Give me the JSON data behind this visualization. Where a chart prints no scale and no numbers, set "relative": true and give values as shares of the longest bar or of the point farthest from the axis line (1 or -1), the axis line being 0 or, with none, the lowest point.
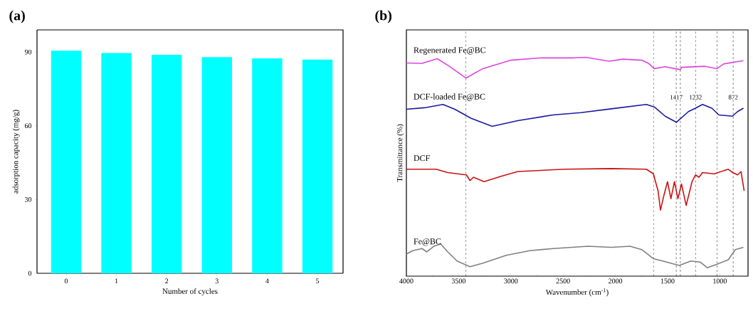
{
  "chart_data": [
    {
      "type": "bar",
      "title": "(a)",
      "xlabel": "Number of cycles",
      "ylabel": "adsorption capacity (mg/g)",
      "categories": [
        "0",
        "1",
        "2",
        "3",
        "4",
        "5"
      ],
      "values": [
        90.5,
        89.6,
        88.9,
        87.9,
        87.4,
        86.9
      ],
      "color": "#00ffff",
      "ylim": [
        0,
        99
      ],
      "yticks": [
        0,
        30,
        60,
        90
      ]
    },
    {
      "type": "line",
      "title": "(b)",
      "xlabel": "Wavenumber (cm$^{-1}$)",
      "ylabel": "Transmittance (%)",
      "relative": true,
      "xlim": [
        4000,
        730
      ],
      "xticks": [
        4000,
        3500,
        3000,
        2500,
        2000,
        1500,
        1000
      ],
      "line_style": "solid",
      "series": [
        {
          "name": "Regenerated Fe@BC",
          "color": "#dd44dd",
          "x": [
            4000,
            3850,
            3705,
            3604,
            3430,
            3268,
            3000,
            2709,
            2396,
            2284,
            2060,
            1926,
            1747,
            1680,
            1629,
            1523,
            1378,
            1367,
            1143,
            1027,
            964,
            852,
            774
          ],
          "values": [
            0.973,
            0.971,
            0.993,
            0.962,
            0.901,
            0.946,
            0.986,
            0.997,
            0.997,
            1.0,
            0.981,
            0.991,
            0.986,
            0.97,
            0.946,
            0.955,
            0.941,
            0.952,
            0.957,
            0.946,
            0.968,
            0.978,
            0.984
          ]
        },
        {
          "name": "DCF-loaded Fe@BC",
          "color": "#1a1aa0",
          "x": [
            4000,
            3828,
            3649,
            3537,
            3380,
            3179,
            2933,
            2597,
            2329,
            2038,
            1703,
            1624,
            1523,
            1416,
            1300,
            1233,
            1166,
            1076,
            1009,
            879,
            830,
            774
          ],
          "values": [
            0.753,
            0.76,
            0.776,
            0.753,
            0.71,
            0.672,
            0.699,
            0.726,
            0.737,
            0.755,
            0.776,
            0.763,
            0.72,
            0.691,
            0.742,
            0.758,
            0.776,
            0.758,
            0.726,
            0.72,
            0.742,
            0.758
          ]
        },
        {
          "name": "DCF",
          "color": "#cc1111",
          "x": [
            4000,
            3716,
            3604,
            3425,
            3391,
            3358,
            3257,
            3089,
            2933,
            2485,
            2038,
            1703,
            1636,
            1591,
            1568,
            1535,
            1501,
            1468,
            1434,
            1401,
            1367,
            1322,
            1266,
            1233,
            1199,
            1166,
            1054,
            919,
            875,
            830,
            797,
            767
          ],
          "values": [
            0.468,
            0.468,
            0.452,
            0.441,
            0.414,
            0.43,
            0.409,
            0.435,
            0.457,
            0.468,
            0.471,
            0.468,
            0.446,
            0.365,
            0.274,
            0.344,
            0.409,
            0.328,
            0.409,
            0.328,
            0.398,
            0.296,
            0.409,
            0.441,
            0.43,
            0.452,
            0.446,
            0.468,
            0.452,
            0.441,
            0.457,
            0.365
          ]
        },
        {
          "name": "Fe@BC",
          "color": "#808080",
          "x": [
            4000,
            3940,
            3850,
            3805,
            3738,
            3671,
            3604,
            3515,
            3391,
            3268,
            3045,
            2821,
            2597,
            2262,
            2038,
            1859,
            1747,
            1636,
            1546,
            1389,
            1277,
            1188,
            1121,
            1031,
            919,
            852,
            774
          ],
          "values": [
            0.065,
            0.081,
            0.091,
            0.075,
            0.102,
            0.113,
            0.075,
            0.032,
            0.005,
            0.022,
            0.059,
            0.081,
            0.091,
            0.102,
            0.097,
            0.102,
            0.086,
            0.043,
            0.032,
            0.011,
            0.032,
            0.027,
            0.0,
            0.016,
            0.038,
            0.086,
            0.097
          ]
        }
      ],
      "ref_lines": [
        {
          "axis": "x",
          "value": 3430,
          "label": null,
          "line_style": "dashed"
        },
        {
          "axis": "x",
          "value": 1631,
          "label": null,
          "line_style": "dashed"
        },
        {
          "axis": "x",
          "value": 1378,
          "label": null,
          "line_style": "dashed"
        },
        {
          "axis": "x",
          "value": 1027,
          "label": null,
          "line_style": "dashed"
        },
        {
          "axis": "x",
          "value": 1417,
          "label": "1417",
          "line_style": "dashed"
        },
        {
          "axis": "x",
          "value": 1232,
          "label": "1232",
          "line_style": "dashed"
        },
        {
          "axis": "x",
          "value": 872,
          "label": "872",
          "line_style": "dashed"
        }
      ]
    }
  ]
}
